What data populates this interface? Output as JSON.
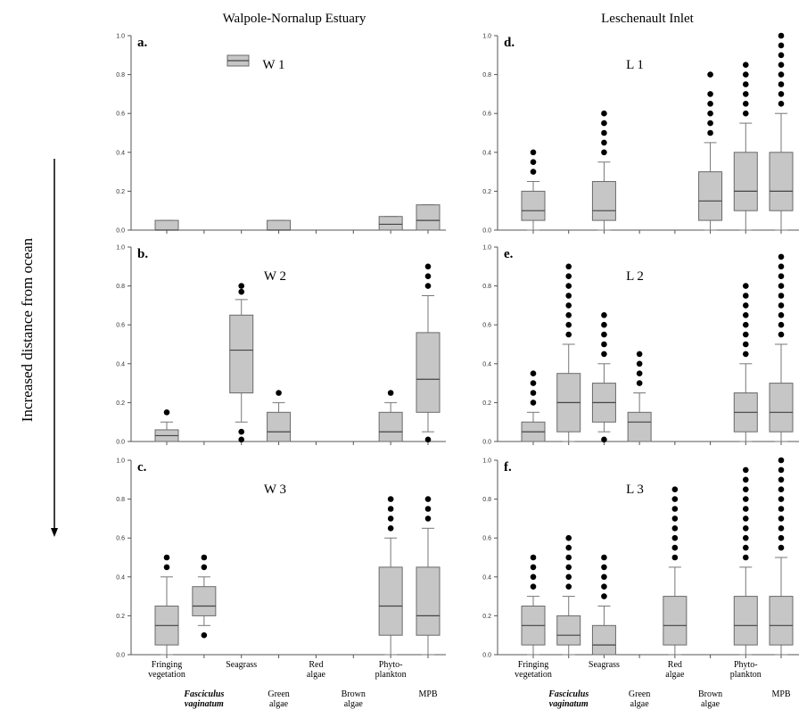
{
  "columns": [
    "Walpole-Nornalup Estuary",
    "Leschenault Inlet"
  ],
  "y_axis_label": "Increased distance from ocean",
  "categories": [
    {
      "lines": [
        "Fringing",
        "vegetation"
      ],
      "row": "top"
    },
    {
      "lines": [
        "Fasciculus",
        "vaginatum"
      ],
      "row": "bottom",
      "italic": true
    },
    {
      "lines": [
        "Seagrass"
      ],
      "row": "top"
    },
    {
      "lines": [
        "Green",
        "algae"
      ],
      "row": "bottom"
    },
    {
      "lines": [
        "Red",
        "algae"
      ],
      "row": "top"
    },
    {
      "lines": [
        "Brown",
        "algae"
      ],
      "row": "bottom"
    },
    {
      "lines": [
        "Phyto-",
        "plankton"
      ],
      "row": "top"
    },
    {
      "lines": [
        "MPB"
      ],
      "row": "bottom"
    }
  ],
  "y_ticks": [
    "0.0",
    "0.2",
    "0.4",
    "0.6",
    "0.8",
    "1.0"
  ],
  "legend": {
    "label": "W 1"
  },
  "colors": {
    "box_fill": "#c6c6c6",
    "box_stroke": "#6a6a6a",
    "outlier": "#000000"
  },
  "chart_data": [
    {
      "type": "box",
      "panel": "a.",
      "site": "W 1",
      "ylim": [
        0,
        1
      ],
      "boxes": [
        {
          "cat": 0,
          "q1": 0.0,
          "med": 0.0,
          "q3": 0.05,
          "wlo": 0.0,
          "whi": 0.05,
          "outliers": []
        },
        {
          "cat": 3,
          "q1": 0.0,
          "med": 0.0,
          "q3": 0.05,
          "wlo": 0.0,
          "whi": 0.05,
          "outliers": []
        },
        {
          "cat": 6,
          "q1": 0.0,
          "med": 0.03,
          "q3": 0.07,
          "wlo": 0.0,
          "whi": 0.07,
          "outliers": []
        },
        {
          "cat": 7,
          "q1": 0.0,
          "med": 0.05,
          "q3": 0.13,
          "wlo": 0.0,
          "whi": 0.13,
          "outliers": []
        }
      ]
    },
    {
      "type": "box",
      "panel": "b.",
      "site": "W 2",
      "ylim": [
        0,
        1
      ],
      "boxes": [
        {
          "cat": 0,
          "q1": 0.0,
          "med": 0.03,
          "q3": 0.06,
          "wlo": 0.0,
          "whi": 0.1,
          "outliers": [
            0.15
          ]
        },
        {
          "cat": 2,
          "q1": 0.25,
          "med": 0.47,
          "q3": 0.65,
          "wlo": 0.1,
          "whi": 0.73,
          "outliers": [
            0.8,
            0.77,
            0.05,
            0.01
          ]
        },
        {
          "cat": 3,
          "q1": 0.0,
          "med": 0.05,
          "q3": 0.15,
          "wlo": 0.0,
          "whi": 0.2,
          "outliers": [
            0.25
          ]
        },
        {
          "cat": 6,
          "q1": 0.0,
          "med": 0.05,
          "q3": 0.15,
          "wlo": 0.0,
          "whi": 0.2,
          "outliers": [
            0.25
          ]
        },
        {
          "cat": 7,
          "q1": 0.15,
          "med": 0.32,
          "q3": 0.56,
          "wlo": 0.05,
          "whi": 0.75,
          "outliers": [
            0.9,
            0.85,
            0.8,
            0.01
          ]
        }
      ]
    },
    {
      "type": "box",
      "panel": "c.",
      "site": "W 3",
      "ylim": [
        0,
        1
      ],
      "boxes": [
        {
          "cat": 0,
          "q1": 0.05,
          "med": 0.15,
          "q3": 0.25,
          "wlo": 0.0,
          "whi": 0.4,
          "outliers": [
            0.5,
            0.45
          ]
        },
        {
          "cat": 1,
          "q1": 0.2,
          "med": 0.25,
          "q3": 0.35,
          "wlo": 0.15,
          "whi": 0.4,
          "outliers": [
            0.5,
            0.45,
            0.1
          ]
        },
        {
          "cat": 6,
          "q1": 0.1,
          "med": 0.25,
          "q3": 0.45,
          "wlo": 0.0,
          "whi": 0.6,
          "outliers": [
            0.8,
            0.75,
            0.7,
            0.65
          ]
        },
        {
          "cat": 7,
          "q1": 0.1,
          "med": 0.2,
          "q3": 0.45,
          "wlo": 0.0,
          "whi": 0.65,
          "outliers": [
            0.8,
            0.75,
            0.7
          ]
        }
      ]
    },
    {
      "type": "box",
      "panel": "d.",
      "site": "L 1",
      "ylim": [
        0,
        1
      ],
      "boxes": [
        {
          "cat": 0,
          "q1": 0.05,
          "med": 0.1,
          "q3": 0.2,
          "wlo": 0.0,
          "whi": 0.25,
          "outliers": [
            0.4,
            0.35,
            0.3
          ]
        },
        {
          "cat": 2,
          "q1": 0.05,
          "med": 0.1,
          "q3": 0.25,
          "wlo": 0.0,
          "whi": 0.35,
          "outliers": [
            0.6,
            0.55,
            0.5,
            0.45,
            0.4
          ]
        },
        {
          "cat": 5,
          "q1": 0.05,
          "med": 0.15,
          "q3": 0.3,
          "wlo": 0.0,
          "whi": 0.45,
          "outliers": [
            0.8,
            0.7,
            0.65,
            0.6,
            0.55,
            0.5
          ]
        },
        {
          "cat": 6,
          "q1": 0.1,
          "med": 0.2,
          "q3": 0.4,
          "wlo": 0.0,
          "whi": 0.55,
          "outliers": [
            0.85,
            0.8,
            0.75,
            0.7,
            0.65,
            0.6
          ]
        },
        {
          "cat": 7,
          "q1": 0.1,
          "med": 0.2,
          "q3": 0.4,
          "wlo": 0.0,
          "whi": 0.6,
          "outliers": [
            1.0,
            0.95,
            0.9,
            0.85,
            0.8,
            0.75,
            0.7,
            0.65
          ]
        }
      ]
    },
    {
      "type": "box",
      "panel": "e.",
      "site": "L 2",
      "ylim": [
        0,
        1
      ],
      "boxes": [
        {
          "cat": 0,
          "q1": 0.0,
          "med": 0.05,
          "q3": 0.1,
          "wlo": 0.0,
          "whi": 0.15,
          "outliers": [
            0.35,
            0.3,
            0.25,
            0.2
          ]
        },
        {
          "cat": 1,
          "q1": 0.05,
          "med": 0.2,
          "q3": 0.35,
          "wlo": 0.0,
          "whi": 0.5,
          "outliers": [
            0.9,
            0.85,
            0.8,
            0.75,
            0.7,
            0.65,
            0.6,
            0.55
          ]
        },
        {
          "cat": 2,
          "q1": 0.1,
          "med": 0.2,
          "q3": 0.3,
          "wlo": 0.05,
          "whi": 0.4,
          "outliers": [
            0.65,
            0.6,
            0.55,
            0.5,
            0.45,
            0.01
          ]
        },
        {
          "cat": 3,
          "q1": 0.0,
          "med": 0.1,
          "q3": 0.15,
          "wlo": 0.0,
          "whi": 0.25,
          "outliers": [
            0.45,
            0.4,
            0.35,
            0.3
          ]
        },
        {
          "cat": 6,
          "q1": 0.05,
          "med": 0.15,
          "q3": 0.25,
          "wlo": 0.0,
          "whi": 0.4,
          "outliers": [
            0.8,
            0.75,
            0.7,
            0.65,
            0.6,
            0.55,
            0.5,
            0.45
          ]
        },
        {
          "cat": 7,
          "q1": 0.05,
          "med": 0.15,
          "q3": 0.3,
          "wlo": 0.0,
          "whi": 0.5,
          "outliers": [
            0.95,
            0.9,
            0.85,
            0.8,
            0.75,
            0.7,
            0.65,
            0.6,
            0.55
          ]
        }
      ]
    },
    {
      "type": "box",
      "panel": "f.",
      "site": "L 3",
      "ylim": [
        0,
        1
      ],
      "boxes": [
        {
          "cat": 0,
          "q1": 0.05,
          "med": 0.15,
          "q3": 0.25,
          "wlo": 0.0,
          "whi": 0.3,
          "outliers": [
            0.5,
            0.45,
            0.4,
            0.35
          ]
        },
        {
          "cat": 1,
          "q1": 0.05,
          "med": 0.1,
          "q3": 0.2,
          "wlo": 0.0,
          "whi": 0.3,
          "outliers": [
            0.6,
            0.55,
            0.5,
            0.45,
            0.4,
            0.35
          ]
        },
        {
          "cat": 2,
          "q1": 0.0,
          "med": 0.05,
          "q3": 0.15,
          "wlo": 0.0,
          "whi": 0.25,
          "outliers": [
            0.5,
            0.45,
            0.4,
            0.35,
            0.3
          ]
        },
        {
          "cat": 4,
          "q1": 0.05,
          "med": 0.15,
          "q3": 0.3,
          "wlo": 0.0,
          "whi": 0.45,
          "outliers": [
            0.85,
            0.8,
            0.75,
            0.7,
            0.65,
            0.6,
            0.55,
            0.5
          ]
        },
        {
          "cat": 6,
          "q1": 0.05,
          "med": 0.15,
          "q3": 0.3,
          "wlo": 0.0,
          "whi": 0.45,
          "outliers": [
            0.95,
            0.9,
            0.85,
            0.8,
            0.75,
            0.7,
            0.65,
            0.6,
            0.55,
            0.5
          ]
        },
        {
          "cat": 7,
          "q1": 0.05,
          "med": 0.15,
          "q3": 0.3,
          "wlo": 0.0,
          "whi": 0.5,
          "outliers": [
            1.0,
            0.95,
            0.9,
            0.85,
            0.8,
            0.75,
            0.7,
            0.65,
            0.6,
            0.55
          ]
        }
      ]
    }
  ]
}
